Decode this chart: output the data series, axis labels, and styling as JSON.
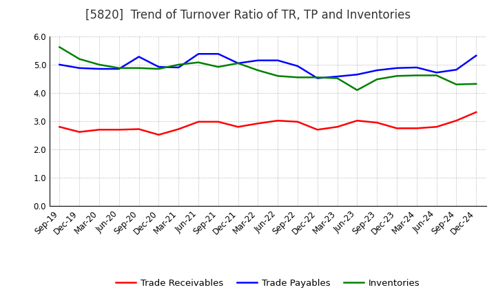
{
  "title": "[5820]  Trend of Turnover Ratio of TR, TP and Inventories",
  "ylim": [
    0.0,
    6.0
  ],
  "yticks": [
    0.0,
    1.0,
    2.0,
    3.0,
    4.0,
    5.0,
    6.0
  ],
  "labels": [
    "Sep-19",
    "Dec-19",
    "Mar-20",
    "Jun-20",
    "Sep-20",
    "Dec-20",
    "Mar-21",
    "Jun-21",
    "Sep-21",
    "Dec-21",
    "Mar-22",
    "Jun-22",
    "Sep-22",
    "Dec-22",
    "Mar-23",
    "Jun-23",
    "Sep-23",
    "Dec-23",
    "Mar-24",
    "Jun-24",
    "Sep-24",
    "Dec-24"
  ],
  "trade_receivables": [
    2.8,
    2.62,
    2.7,
    2.7,
    2.72,
    2.52,
    2.72,
    2.98,
    2.98,
    2.8,
    2.92,
    3.02,
    2.98,
    2.7,
    2.8,
    3.02,
    2.95,
    2.75,
    2.75,
    2.8,
    3.02,
    3.32
  ],
  "trade_payables": [
    5.0,
    4.88,
    4.85,
    4.85,
    5.28,
    4.92,
    4.9,
    5.38,
    5.38,
    5.05,
    5.15,
    5.15,
    4.95,
    4.52,
    4.58,
    4.65,
    4.8,
    4.88,
    4.9,
    4.72,
    4.82,
    5.32
  ],
  "inventories": [
    5.62,
    5.2,
    5.0,
    4.88,
    4.88,
    4.85,
    5.0,
    5.08,
    4.92,
    5.05,
    4.8,
    4.6,
    4.55,
    4.55,
    4.52,
    4.1,
    4.48,
    4.6,
    4.62,
    4.62,
    4.3,
    4.32
  ],
  "tr_color": "#ff0000",
  "tp_color": "#0000ff",
  "inv_color": "#008000",
  "line_width": 1.8,
  "legend_labels": [
    "Trade Receivables",
    "Trade Payables",
    "Inventories"
  ],
  "bg_color": "#ffffff",
  "grid_color": "#aaaaaa",
  "title_fontsize": 12,
  "tick_fontsize": 8.5,
  "legend_fontsize": 9.5
}
